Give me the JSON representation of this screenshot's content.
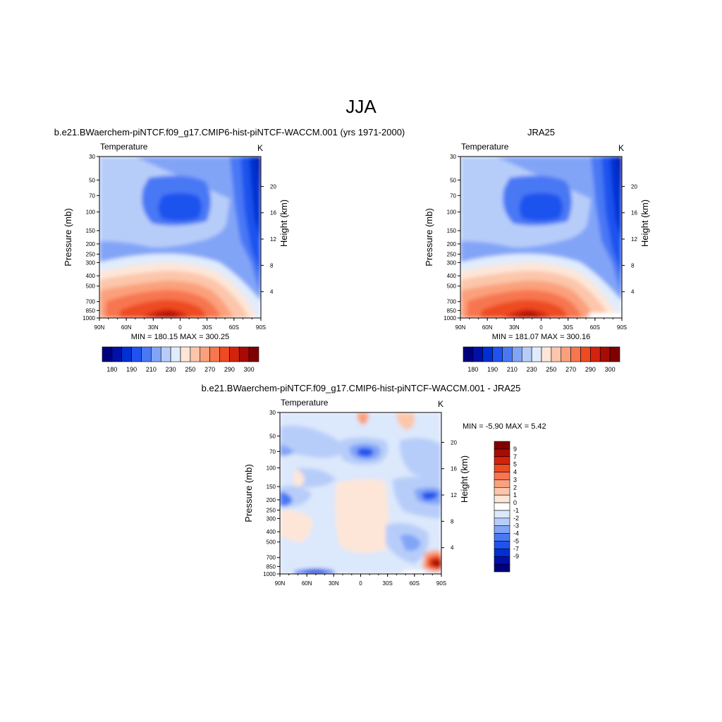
{
  "title": "JJA",
  "colors": {
    "model_palette": [
      "#00007f",
      "#0010a8",
      "#0030d2",
      "#1f52ee",
      "#4a78f5",
      "#82a4f7",
      "#b7cdf9",
      "#e0ecfd",
      "#fde6d8",
      "#fcc6aa",
      "#fba07c",
      "#f77650",
      "#ee4b22",
      "#d4230d",
      "#a80a04",
      "#7f0000"
    ],
    "diff_palette": [
      "#00007f",
      "#0010a8",
      "#0030d2",
      "#1f52ee",
      "#4a78f5",
      "#82a4f7",
      "#b7cdf9",
      "#dce8fc",
      "#ffffff",
      "#fde6d8",
      "#fcc6aa",
      "#fba07c",
      "#f77650",
      "#ee4b22",
      "#d4230d",
      "#a80a04",
      "#7f0000"
    ]
  },
  "chart_data": [
    {
      "type": "heatmap",
      "title": "b.e21.BWaerchem-piNTCF.f09_g17.CMIP6-hist-piNTCF-WACCM.001 (yrs 1971-2000)",
      "left_string": "Temperature",
      "units": "K",
      "xlabel": "",
      "ylabel": "Pressure (mb)",
      "y2label": "Height (km)",
      "x_ticks": [
        "90N",
        "60N",
        "30N",
        "0",
        "30S",
        "60S",
        "90S"
      ],
      "y_ticks": [
        30,
        50,
        70,
        100,
        150,
        200,
        250,
        300,
        400,
        500,
        700,
        850,
        1000
      ],
      "y2_ticks": [
        4,
        8,
        12,
        16,
        20
      ],
      "yscale": "log",
      "ylim": [
        1000,
        30
      ],
      "min_max_text": "MIN = 180.15  MAX = 300.25",
      "colorbar_labels": [
        "180",
        "190",
        "210",
        "230",
        "250",
        "270",
        "290",
        "300"
      ]
    },
    {
      "type": "heatmap",
      "title": "JRA25",
      "left_string": "Temperature",
      "units": "K",
      "xlabel": "",
      "ylabel": "Pressure (mb)",
      "y2label": "Height (km)",
      "x_ticks": [
        "90N",
        "60N",
        "30N",
        "0",
        "30S",
        "60S",
        "90S"
      ],
      "y_ticks": [
        30,
        50,
        70,
        100,
        150,
        200,
        250,
        300,
        400,
        500,
        700,
        850,
        1000
      ],
      "y2_ticks": [
        4,
        8,
        12,
        16,
        20
      ],
      "yscale": "log",
      "ylim": [
        1000,
        30
      ],
      "min_max_text": "MIN = 181.07  MAX = 300.16",
      "colorbar_labels": [
        "180",
        "190",
        "210",
        "230",
        "250",
        "270",
        "290",
        "300"
      ]
    },
    {
      "type": "heatmap",
      "title": "b.e21.BWaerchem-piNTCF.f09_g17.CMIP6-hist-piNTCF-WACCM.001 - JRA25",
      "left_string": "Temperature",
      "units": "K",
      "xlabel": "",
      "ylabel": "Pressure (mb)",
      "y2label": "Height (km)",
      "x_ticks": [
        "90N",
        "60N",
        "30N",
        "0",
        "30S",
        "60S",
        "90S"
      ],
      "y_ticks": [
        30,
        50,
        70,
        100,
        150,
        200,
        250,
        300,
        400,
        500,
        700,
        850,
        1000
      ],
      "y2_ticks": [
        4,
        8,
        12,
        16,
        20
      ],
      "yscale": "log",
      "ylim": [
        1000,
        30
      ],
      "min_max_text": "MIN =  -5.90  MAX =   5.42",
      "colorbar_labels": [
        "9",
        "7",
        "5",
        "4",
        "3",
        "2",
        "1",
        "0",
        "-1",
        "-2",
        "-3",
        "-4",
        "-5",
        "-7",
        "-9"
      ]
    }
  ]
}
